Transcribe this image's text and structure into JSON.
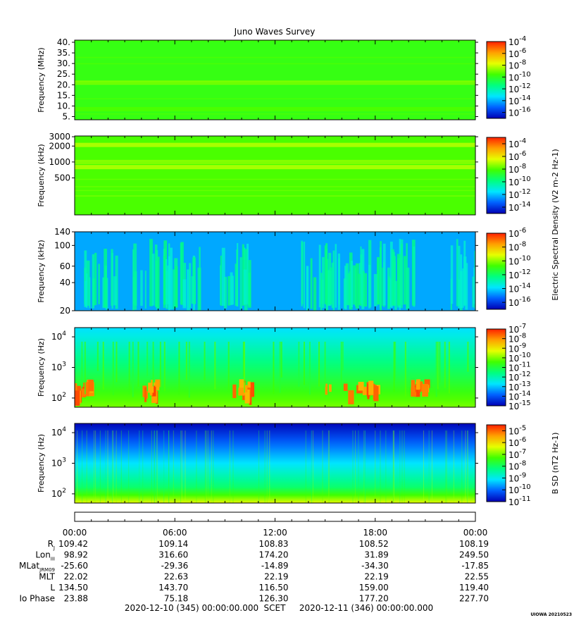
{
  "title": "Juno Waves Survey",
  "colormap": [
    "#0000b4",
    "#0060ff",
    "#00e6ff",
    "#00ff80",
    "#40ff00",
    "#e6ff00",
    "#ffa000",
    "#ff2000"
  ],
  "chart_data": [
    {
      "type": "heatmap",
      "ylabel": "Frequency (MHz)",
      "ylim": [
        3.5,
        41
      ],
      "yscale": "linear",
      "yticks": [
        {
          "v": 40,
          "t": "40."
        },
        {
          "v": 35,
          "t": "35."
        },
        {
          "v": 30,
          "t": "30."
        },
        {
          "v": 25,
          "t": "25."
        },
        {
          "v": 20,
          "t": "20."
        },
        {
          "v": 15,
          "t": "15."
        },
        {
          "v": 10,
          "t": "10."
        },
        {
          "v": 5,
          "t": "5."
        }
      ],
      "colorbar": {
        "range": [
          -17,
          -4
        ],
        "ticks": [
          "-4",
          "-6",
          "-8",
          "-10",
          "-12",
          "-14",
          "-16"
        ],
        "tick_exponents": [
          -4,
          -6,
          -8,
          -10,
          -12,
          -14,
          -16
        ],
        "label": ""
      },
      "background_level": 0.55,
      "bands": [
        {
          "center": 21,
          "level": 0.62
        },
        {
          "center": 8.5,
          "level": 0.58
        }
      ]
    },
    {
      "type": "heatmap",
      "ylabel": "Frequency (kHz)",
      "ylim": [
        100,
        3100
      ],
      "yscale": "log",
      "yticks": [
        {
          "v": 3000,
          "t": "3000"
        },
        {
          "v": 2000,
          "t": "2000"
        },
        {
          "v": 1000,
          "t": "1000"
        },
        {
          "v": 500,
          "t": "500"
        }
      ],
      "colorbar": {
        "range": [
          -15,
          -3
        ],
        "ticks": [
          "-4",
          "-6",
          "-8",
          "-10",
          "-12",
          "-14"
        ],
        "tick_exponents": [
          -4,
          -6,
          -8,
          -10,
          -12,
          -14
        ],
        "label": "Electric Spectral Density (V2 m-2 Hz-1)"
      },
      "background_level": 0.58,
      "bands": [
        {
          "center": 2100,
          "level": 0.66
        },
        {
          "center": 800,
          "level": 0.66
        },
        {
          "center": 1000,
          "level": 0.63
        }
      ]
    },
    {
      "type": "heatmap",
      "ylabel": "Frequency (kHz)",
      "ylim": [
        20,
        140
      ],
      "yscale": "log",
      "yticks": [
        {
          "v": 140,
          "t": "140"
        },
        {
          "v": 100,
          "t": "100"
        },
        {
          "v": 60,
          "t": "60"
        },
        {
          "v": 40,
          "t": "40"
        },
        {
          "v": 20,
          "t": "20"
        }
      ],
      "colorbar": {
        "range": [
          -17,
          -6
        ],
        "ticks": [
          "-6",
          "-8",
          "-10",
          "-12",
          "-14",
          "-16"
        ],
        "tick_exponents": [
          -6,
          -8,
          -10,
          -12,
          -14,
          -16
        ],
        "label": ""
      },
      "background_level": 0.22,
      "bursts_hours": [
        1.5,
        4.5,
        6.5,
        9.5,
        14.5,
        16,
        18,
        19.5,
        23.5
      ]
    },
    {
      "type": "heatmap",
      "ylabel": "Frequency (Hz)",
      "ylim": [
        50,
        20000
      ],
      "yscale": "log",
      "yticks": [
        {
          "v": 10000,
          "t": "10",
          "e": "4"
        },
        {
          "v": 1000,
          "t": "10",
          "e": "3"
        },
        {
          "v": 100,
          "t": "10",
          "e": "2"
        }
      ],
      "colorbar": {
        "range": [
          -15,
          -7
        ],
        "ticks": [
          "-7",
          "-8",
          "-9",
          "-10",
          "-11",
          "-12",
          "-13",
          "-14",
          "-15"
        ],
        "tick_exponents": [
          -7,
          -8,
          -9,
          -10,
          -11,
          -12,
          -13,
          -14,
          -15
        ],
        "label": ""
      },
      "high_freq_level": 0.28,
      "low_freq_level": 0.62,
      "hot_intervals_hours": [
        [
          0,
          1
        ],
        [
          4,
          5
        ],
        [
          9.3,
          10.5
        ],
        [
          15,
          18.5
        ],
        [
          20,
          21
        ]
      ]
    },
    {
      "type": "heatmap",
      "ylabel": "Frequency (Hz)",
      "ylim": [
        50,
        20000
      ],
      "yscale": "log",
      "yticks": [
        {
          "v": 10000,
          "t": "10",
          "e": "4"
        },
        {
          "v": 1000,
          "t": "10",
          "e": "3"
        },
        {
          "v": 100,
          "t": "10",
          "e": "2"
        }
      ],
      "colorbar": {
        "range": [
          -11,
          -4.5
        ],
        "ticks": [
          "-5",
          "-6",
          "-7",
          "-8",
          "-9",
          "-10",
          "-11"
        ],
        "tick_exponents": [
          -5,
          -6,
          -7,
          -8,
          -9,
          -10,
          -11
        ],
        "label": "B SD (nT2 Hz-1)"
      },
      "high_freq_level": 0.08,
      "low_freq_level": 0.72
    }
  ],
  "xaxis": {
    "ticks": [
      "00:00",
      "06:00",
      "12:00",
      "18:00",
      "00:00"
    ],
    "range_hours": [
      0,
      24
    ]
  },
  "ephemeris": {
    "rows": [
      {
        "label": "R",
        "sub": "J",
        "values": [
          "109.42",
          "109.14",
          "108.83",
          "108.52",
          "108.19"
        ]
      },
      {
        "label": "Lon",
        "sub": "III",
        "values": [
          "98.92",
          "316.60",
          "174.20",
          "31.89",
          "249.50"
        ]
      },
      {
        "label": "MLat",
        "sub": "JRM09",
        "values": [
          "-25.60",
          "-29.36",
          "-14.89",
          "-34.30",
          "-17.85"
        ]
      },
      {
        "label": "MLT",
        "sub": "",
        "values": [
          "22.02",
          "22.63",
          "22.19",
          "22.19",
          "22.55"
        ]
      },
      {
        "label": "L",
        "sub": "",
        "values": [
          "134.50",
          "143.70",
          "116.50",
          "159.00",
          "119.40"
        ]
      },
      {
        "label": "Io Phase",
        "sub": "",
        "values": [
          "23.88",
          "75.18",
          "126.30",
          "177.20",
          "227.70"
        ]
      }
    ]
  },
  "footer": {
    "start": "2020-12-10 (345) 00:00:00.000",
    "scet": "SCET",
    "end": "2020-12-11 (346) 00:00:00.000",
    "stamp": "UIOWA 20210523"
  }
}
